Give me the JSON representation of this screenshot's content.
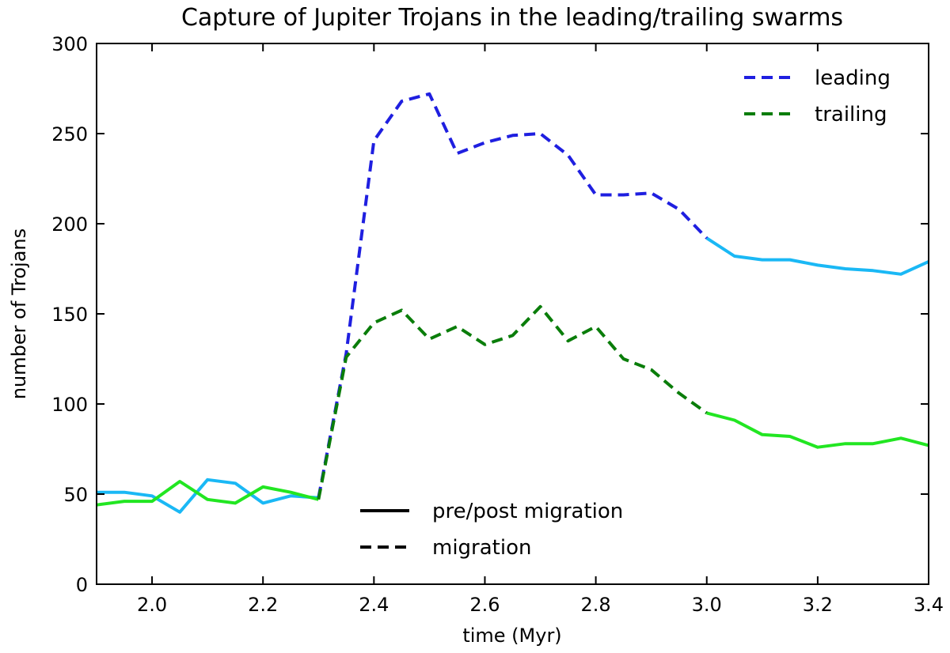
{
  "chart_data": {
    "type": "line",
    "title": "Capture of Jupiter Trojans in the leading/trailing swarms",
    "xlabel": "time (Myr)",
    "ylabel": "number of Trojans",
    "xlim": [
      1.9,
      3.4
    ],
    "ylim": [
      0,
      300
    ],
    "xticks": [
      "2.0",
      "2.2",
      "2.4",
      "2.6",
      "2.8",
      "3.0",
      "3.2",
      "3.4"
    ],
    "yticks": [
      "0",
      "50",
      "100",
      "150",
      "200",
      "250",
      "300"
    ],
    "grid": false,
    "series": [
      {
        "name": "leading",
        "color_migration": "#1f1fe0",
        "color_prepost": "#1ab8f5",
        "x": [
          1.9,
          1.95,
          2.0,
          2.05,
          2.1,
          2.15,
          2.2,
          2.25,
          2.3,
          2.35,
          2.4,
          2.45,
          2.5,
          2.55,
          2.6,
          2.65,
          2.7,
          2.75,
          2.8,
          2.85,
          2.9,
          2.95,
          3.0,
          3.05,
          3.1,
          3.15,
          3.2,
          3.25,
          3.3,
          3.35,
          3.4
        ],
        "y": [
          51,
          51,
          49,
          40,
          58,
          56,
          45,
          49,
          48,
          128,
          246,
          268,
          272,
          239,
          245,
          249,
          250,
          238,
          216,
          216,
          217,
          208,
          192,
          182,
          180,
          180,
          177,
          175,
          174,
          172,
          179
        ]
      },
      {
        "name": "trailing",
        "color_migration": "#0a7d0a",
        "color_prepost": "#22e622",
        "x": [
          1.9,
          1.95,
          2.0,
          2.05,
          2.1,
          2.15,
          2.2,
          2.25,
          2.3,
          2.35,
          2.4,
          2.45,
          2.5,
          2.55,
          2.6,
          2.65,
          2.7,
          2.75,
          2.8,
          2.85,
          2.9,
          2.95,
          3.0,
          3.05,
          3.1,
          3.15,
          3.2,
          3.25,
          3.3,
          3.35,
          3.4
        ],
        "y": [
          44,
          46,
          46,
          57,
          47,
          45,
          54,
          51,
          47,
          126,
          145,
          152,
          136,
          143,
          133,
          138,
          154,
          135,
          143,
          125,
          119,
          106,
          95,
          91,
          83,
          82,
          76,
          78,
          78,
          81,
          77
        ]
      }
    ],
    "migration_window": [
      2.3,
      3.0
    ],
    "legend_series": {
      "placement": "top-right",
      "entries": [
        {
          "label": "leading",
          "color": "#1f1fe0",
          "style": "dashed"
        },
        {
          "label": "trailing",
          "color": "#0a7d0a",
          "style": "dashed"
        }
      ]
    },
    "legend_style": {
      "placement": "bottom-center",
      "entries": [
        {
          "label": "pre/post migration",
          "color": "#000000",
          "style": "solid"
        },
        {
          "label": "migration",
          "color": "#000000",
          "style": "dashed"
        }
      ]
    }
  }
}
